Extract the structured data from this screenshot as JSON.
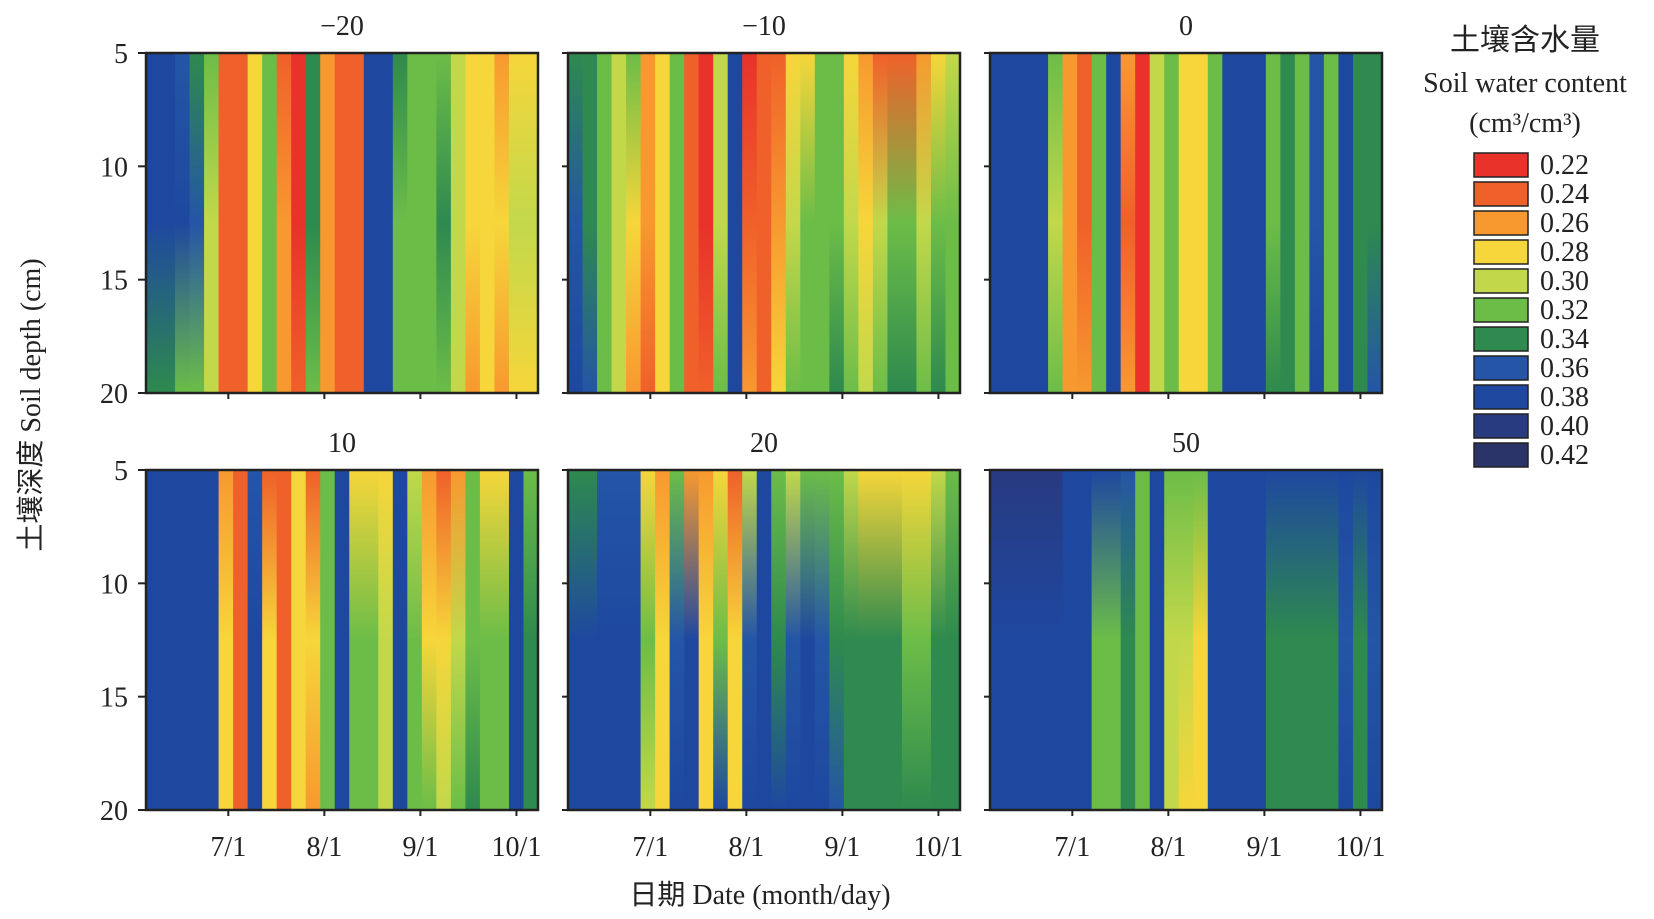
{
  "chart_data": {
    "type": "heatmap",
    "panels": [
      {
        "title": "−20",
        "stripes": [
          [
            0.37,
            0.38,
            0.34
          ],
          [
            0.37,
            0.37,
            0.33
          ],
          [
            0.36,
            0.37,
            0.32
          ],
          [
            0.34,
            0.36,
            0.32
          ],
          [
            0.32,
            0.3,
            0.3
          ],
          [
            0.24,
            0.24,
            0.23
          ],
          [
            0.23,
            0.23,
            0.23
          ],
          [
            0.28,
            0.28,
            0.28
          ],
          [
            0.31,
            0.31,
            0.31
          ],
          [
            0.24,
            0.25,
            0.25
          ],
          [
            0.22,
            0.22,
            0.23
          ],
          [
            0.33,
            0.33,
            0.32
          ],
          [
            0.26,
            0.25,
            0.25
          ],
          [
            0.23,
            0.23,
            0.23
          ],
          [
            0.24,
            0.23,
            0.24
          ],
          [
            0.37,
            0.37,
            0.37
          ],
          [
            0.37,
            0.38,
            0.37
          ],
          [
            0.33,
            0.32,
            0.32
          ],
          [
            0.31,
            0.32,
            0.31
          ],
          [
            0.32,
            0.32,
            0.31
          ],
          [
            0.32,
            0.34,
            0.32
          ],
          [
            0.3,
            0.3,
            0.3
          ],
          [
            0.28,
            0.29,
            0.26
          ],
          [
            0.27,
            0.28,
            0.27
          ],
          [
            0.26,
            0.29,
            0.26
          ],
          [
            0.28,
            0.3,
            0.28
          ],
          [
            0.29,
            0.3,
            0.29
          ]
        ]
      },
      {
        "title": "−10",
        "stripes": [
          [
            0.33,
            0.36,
            0.37
          ],
          [
            0.33,
            0.34,
            0.36
          ],
          [
            0.32,
            0.32,
            0.32
          ],
          [
            0.3,
            0.3,
            0.3
          ],
          [
            0.32,
            0.27,
            0.26
          ],
          [
            0.26,
            0.25,
            0.24
          ],
          [
            0.29,
            0.28,
            0.29
          ],
          [
            0.32,
            0.32,
            0.32
          ],
          [
            0.23,
            0.24,
            0.24
          ],
          [
            0.22,
            0.22,
            0.23
          ],
          [
            0.3,
            0.3,
            0.31
          ],
          [
            0.37,
            0.37,
            0.37
          ],
          [
            0.22,
            0.23,
            0.25
          ],
          [
            0.24,
            0.24,
            0.24
          ],
          [
            0.24,
            0.26,
            0.27
          ],
          [
            0.27,
            0.3,
            0.31
          ],
          [
            0.29,
            0.31,
            0.32
          ],
          [
            0.31,
            0.32,
            0.32
          ],
          [
            0.32,
            0.32,
            0.33
          ],
          [
            0.27,
            0.3,
            0.31
          ],
          [
            0.26,
            0.29,
            0.3
          ],
          [
            0.24,
            0.3,
            0.32
          ],
          [
            0.24,
            0.32,
            0.34
          ],
          [
            0.24,
            0.31,
            0.33
          ],
          [
            0.26,
            0.3,
            0.31
          ],
          [
            0.27,
            0.31,
            0.33
          ],
          [
            0.3,
            0.32,
            0.32
          ]
        ]
      },
      {
        "title": "0",
        "stripes": [
          [
            0.37,
            0.38,
            0.38
          ],
          [
            0.38,
            0.38,
            0.38
          ],
          [
            0.38,
            0.38,
            0.38
          ],
          [
            0.37,
            0.37,
            0.37
          ],
          [
            0.31,
            0.3,
            0.32
          ],
          [
            0.26,
            0.25,
            0.26
          ],
          [
            0.24,
            0.24,
            0.25
          ],
          [
            0.31,
            0.31,
            0.31
          ],
          [
            0.37,
            0.37,
            0.37
          ],
          [
            0.25,
            0.24,
            0.25
          ],
          [
            0.22,
            0.22,
            0.22
          ],
          [
            0.3,
            0.3,
            0.3
          ],
          [
            0.32,
            0.31,
            0.31
          ],
          [
            0.28,
            0.27,
            0.28
          ],
          [
            0.27,
            0.27,
            0.27
          ],
          [
            0.31,
            0.31,
            0.32
          ],
          [
            0.38,
            0.38,
            0.38
          ],
          [
            0.38,
            0.38,
            0.38
          ],
          [
            0.37,
            0.37,
            0.37
          ],
          [
            0.32,
            0.32,
            0.33
          ],
          [
            0.33,
            0.33,
            0.33
          ],
          [
            0.32,
            0.31,
            0.32
          ],
          [
            0.36,
            0.36,
            0.37
          ],
          [
            0.31,
            0.31,
            0.31
          ],
          [
            0.37,
            0.37,
            0.37
          ],
          [
            0.33,
            0.33,
            0.34
          ],
          [
            0.35,
            0.35,
            0.36
          ]
        ]
      },
      {
        "title": "10",
        "stripes": [
          [
            0.38,
            0.38,
            0.38
          ],
          [
            0.38,
            0.38,
            0.38
          ],
          [
            0.38,
            0.38,
            0.38
          ],
          [
            0.38,
            0.38,
            0.38
          ],
          [
            0.38,
            0.38,
            0.38
          ],
          [
            0.26,
            0.28,
            0.28
          ],
          [
            0.23,
            0.24,
            0.24
          ],
          [
            0.36,
            0.37,
            0.37
          ],
          [
            0.24,
            0.27,
            0.27
          ],
          [
            0.23,
            0.23,
            0.23
          ],
          [
            0.27,
            0.28,
            0.28
          ],
          [
            0.24,
            0.27,
            0.26
          ],
          [
            0.31,
            0.32,
            0.32
          ],
          [
            0.37,
            0.37,
            0.37
          ],
          [
            0.27,
            0.31,
            0.31
          ],
          [
            0.29,
            0.31,
            0.31
          ],
          [
            0.28,
            0.3,
            0.3
          ],
          [
            0.37,
            0.37,
            0.37
          ],
          [
            0.3,
            0.32,
            0.32
          ],
          [
            0.26,
            0.29,
            0.31
          ],
          [
            0.24,
            0.28,
            0.3
          ],
          [
            0.25,
            0.3,
            0.31
          ],
          [
            0.32,
            0.32,
            0.33
          ],
          [
            0.29,
            0.31,
            0.32
          ],
          [
            0.28,
            0.31,
            0.32
          ],
          [
            0.37,
            0.37,
            0.37
          ],
          [
            0.31,
            0.33,
            0.34
          ]
        ]
      },
      {
        "title": "20",
        "stripes": [
          [
            0.34,
            0.37,
            0.38
          ],
          [
            0.35,
            0.37,
            0.38
          ],
          [
            0.36,
            0.38,
            0.38
          ],
          [
            0.36,
            0.38,
            0.38
          ],
          [
            0.36,
            0.38,
            0.38
          ],
          [
            0.29,
            0.31,
            0.3
          ],
          [
            0.25,
            0.28,
            0.28
          ],
          [
            0.31,
            0.36,
            0.37
          ],
          [
            0.25,
            0.37,
            0.37
          ],
          [
            0.25,
            0.28,
            0.29
          ],
          [
            0.29,
            0.32,
            0.37
          ],
          [
            0.24,
            0.29,
            0.29
          ],
          [
            0.3,
            0.36,
            0.37
          ],
          [
            0.37,
            0.38,
            0.38
          ],
          [
            0.31,
            0.34,
            0.37
          ],
          [
            0.3,
            0.36,
            0.37
          ],
          [
            0.31,
            0.37,
            0.37
          ],
          [
            0.32,
            0.36,
            0.37
          ],
          [
            0.31,
            0.35,
            0.36
          ],
          [
            0.3,
            0.33,
            0.34
          ],
          [
            0.29,
            0.33,
            0.34
          ],
          [
            0.28,
            0.33,
            0.34
          ],
          [
            0.27,
            0.33,
            0.34
          ],
          [
            0.27,
            0.32,
            0.33
          ],
          [
            0.28,
            0.32,
            0.33
          ],
          [
            0.3,
            0.33,
            0.34
          ],
          [
            0.32,
            0.34,
            0.35
          ]
        ]
      },
      {
        "title": "50",
        "stripes": [
          [
            0.39,
            0.38,
            0.38
          ],
          [
            0.4,
            0.38,
            0.38
          ],
          [
            0.4,
            0.38,
            0.38
          ],
          [
            0.39,
            0.38,
            0.38
          ],
          [
            0.39,
            0.38,
            0.38
          ],
          [
            0.38,
            0.38,
            0.38
          ],
          [
            0.37,
            0.38,
            0.38
          ],
          [
            0.37,
            0.32,
            0.32
          ],
          [
            0.37,
            0.32,
            0.32
          ],
          [
            0.36,
            0.33,
            0.33
          ],
          [
            0.31,
            0.31,
            0.31
          ],
          [
            0.37,
            0.37,
            0.37
          ],
          [
            0.32,
            0.3,
            0.3
          ],
          [
            0.31,
            0.3,
            0.29
          ],
          [
            0.31,
            0.29,
            0.28
          ],
          [
            0.37,
            0.37,
            0.37
          ],
          [
            0.38,
            0.38,
            0.38
          ],
          [
            0.38,
            0.38,
            0.38
          ],
          [
            0.38,
            0.37,
            0.37
          ],
          [
            0.37,
            0.33,
            0.33
          ],
          [
            0.37,
            0.33,
            0.33
          ],
          [
            0.37,
            0.33,
            0.33
          ],
          [
            0.37,
            0.33,
            0.33
          ],
          [
            0.37,
            0.33,
            0.34
          ],
          [
            0.37,
            0.36,
            0.37
          ],
          [
            0.37,
            0.33,
            0.33
          ],
          [
            0.37,
            0.36,
            0.37
          ]
        ]
      }
    ],
    "depth_ticks": [
      5,
      10,
      15,
      20
    ],
    "date_ticks": [
      "7/1",
      "8/1",
      "9/1",
      "10/1"
    ],
    "ylabel": "土壤深度 Soil depth (cm)",
    "xlabel": "日期 Date (month/day)",
    "legend": {
      "title_zh": "土壤含水量",
      "title_en": "Soil water content",
      "unit": "(cm³/cm³)",
      "placement": "right",
      "levels": [
        0.22,
        0.24,
        0.26,
        0.28,
        0.3,
        0.32,
        0.34,
        0.36,
        0.38,
        0.4,
        0.42
      ],
      "labels": [
        "0.22",
        "0.24",
        "0.26",
        "0.28",
        "0.30",
        "0.32",
        "0.34",
        "0.36",
        "0.38",
        "0.40",
        "0.42"
      ],
      "colors": [
        "#e8322a",
        "#f0602a",
        "#f7992f",
        "#f6d63a",
        "#c2d84a",
        "#6cbd48",
        "#2e8a4e",
        "#2455a6",
        "#1e48a0",
        "#283a80",
        "#2a3468"
      ]
    }
  }
}
